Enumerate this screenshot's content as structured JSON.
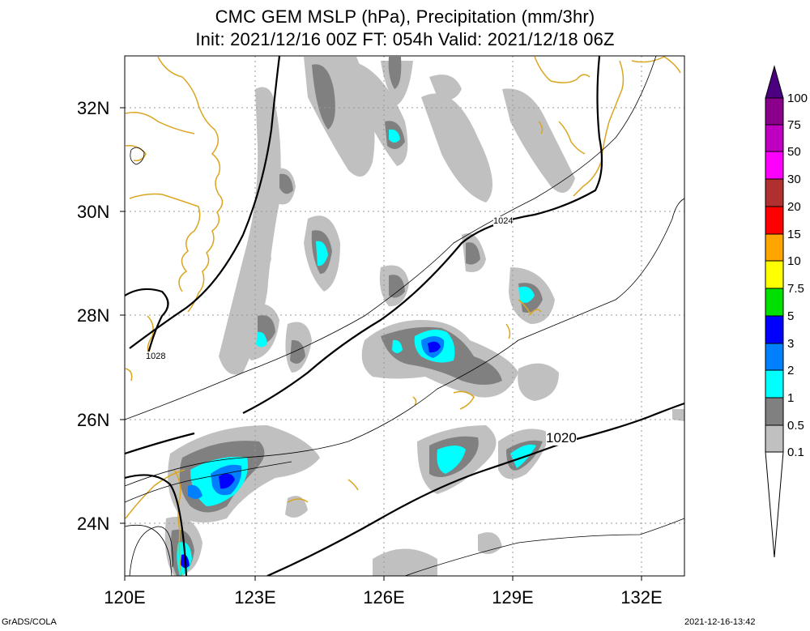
{
  "title": {
    "line1": "CMC GEM MSLP (hPa), Precipitation (mm/3hr)",
    "line2": "Init: 2021/12/16 00Z  FT: 054h  Valid: 2021/12/18 06Z"
  },
  "axes": {
    "lat_labels": [
      "32N",
      "30N",
      "28N",
      "26N",
      "24N"
    ],
    "lon_labels": [
      "120E",
      "123E",
      "126E",
      "129E",
      "132E"
    ]
  },
  "contour_labels": [
    "1024",
    "1028",
    "1020"
  ],
  "colorbar": {
    "labels": [
      "100",
      "75",
      "50",
      "30",
      "20",
      "15",
      "10",
      "7.5",
      "5",
      "3",
      "2",
      "1",
      "0.5",
      "0.1"
    ],
    "colors": [
      "#8b008b",
      "#c000c0",
      "#ff00ff",
      "#b03030",
      "#ff0000",
      "#ffa500",
      "#ffff00",
      "#00e000",
      "#0000ff",
      "#0080ff",
      "#00ffff",
      "#808080",
      "#c0c0c0"
    ],
    "top_arrow_color": "#4b0082"
  },
  "footer": {
    "left": "GrADS/COLA",
    "right": "2021-12-16-13:42"
  },
  "colors": {
    "coast": "#daa520",
    "contour": "#000000",
    "grid": "#999999",
    "precip_light": "#c0c0c0",
    "precip_mid": "#808080",
    "precip_cyan": "#00ffff",
    "precip_blue": "#0080ff",
    "precip_dblue": "#0000ff"
  }
}
